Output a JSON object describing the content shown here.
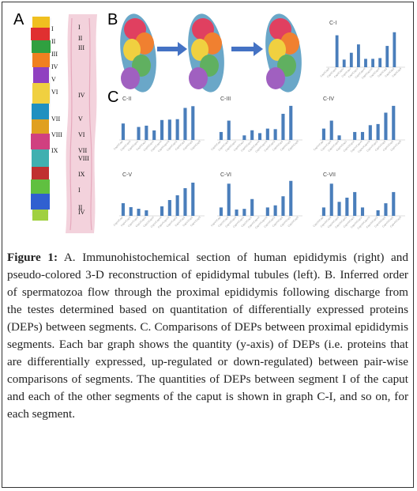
{
  "panels": {
    "a": "A",
    "b": "B",
    "c": "C"
  },
  "tissue_labels": {
    "left": [
      "I",
      "II",
      "III",
      "IV",
      "V",
      "VI",
      "VII",
      "VIII",
      "IX"
    ],
    "right": [
      "I",
      "II",
      "III",
      "IV",
      "V",
      "VI",
      "VII",
      "VIII",
      "IX",
      "I",
      "II",
      "IV"
    ]
  },
  "caption": {
    "label": "Figure 1:",
    "text": " A. Immunohistochemical section of human epididymis (right) and pseudo-colored 3-D reconstruction of epididymal tubules (left). B. Inferred order of spermatozoa flow through the proximal epididymis following discharge from the testes determined based on quantitation of differentially expressed proteins (DEPs) between segments. C. Comparisons of DEPs between proximal epididymis segments. Each bar graph shows the quantity (y-axis) of DEPs (i.e. proteins that are differentially expressed, up-regulated or down-regulated) between pair-wise comparisons of segments. The quantities of DEPs between segment I of the caput and each of the other segments of the caput is shown in graph C-I, and so on, for each segment."
  },
  "colors": {
    "bar": "#4a7ebb",
    "arrow": "#4472c4"
  },
  "chart_data": [
    {
      "type": "bar",
      "title": "C-I",
      "categories": [
        "CapI/CapII",
        "CapI/CapIII",
        "CapI/CapIV",
        "CapI/CapV",
        "CapI/CapVI",
        "CapI/CapVII",
        "CapI/CapVIII",
        "CapI/CapIX",
        "CapI/Cap1",
        "CapI/Cap2",
        "CapI/Cap3"
      ],
      "values": [
        0,
        210,
        50,
        95,
        150,
        55,
        55,
        60,
        140,
        230,
        0
      ],
      "ylim": [
        0,
        260
      ]
    },
    {
      "type": "bar",
      "title": "C-II",
      "categories": [
        "CapII/CapI",
        "CapII/CapIII",
        "CapII/CapIV",
        "CapII/CapV",
        "CapII/CapVI",
        "CapII/CapVII",
        "CapII/CapVIII",
        "CapII/CapIX",
        "CapII/Cap1",
        "CapII/Cap2",
        "CapII/Cap3"
      ],
      "values": [
        190,
        0,
        150,
        165,
        110,
        230,
        235,
        240,
        370,
        390,
        0
      ],
      "ylim": [
        0,
        420
      ]
    },
    {
      "type": "bar",
      "title": "C-III",
      "categories": [
        "CapIII/CapI",
        "CapIII/CapII",
        "CapIII/CapIV",
        "CapIII/CapV",
        "CapIII/CapVI",
        "CapIII/CapVII",
        "CapIII/CapVIII",
        "CapIII/CapIX",
        "CapIII/Cap1",
        "CapIII/Cap2",
        "CapIII/Cap3"
      ],
      "values": [
        70,
        170,
        0,
        40,
        85,
        60,
        100,
        95,
        230,
        300,
        0
      ],
      "ylim": [
        0,
        320
      ]
    },
    {
      "type": "bar",
      "title": "C-IV",
      "categories": [
        "CapIV/CapI",
        "CapIV/CapII",
        "CapIV/CapIII",
        "CapIV/CapV",
        "CapIV/CapVI",
        "CapIV/CapVII",
        "CapIV/CapVIII",
        "CapIV/CapIX",
        "CapIV/Cap1",
        "CapIV/Cap2",
        "CapIV/Cap3"
      ],
      "values": [
        100,
        170,
        40,
        0,
        70,
        70,
        130,
        140,
        240,
        300,
        0
      ],
      "ylim": [
        0,
        320
      ]
    },
    {
      "type": "bar",
      "title": "C-V",
      "categories": [
        "CapV/CapI",
        "CapV/CapII",
        "CapV/CapIII",
        "CapV/CapIV",
        "CapV/CapVI",
        "CapV/CapVII",
        "CapV/CapVIII",
        "CapV/CapIX",
        "CapV/Cap1",
        "CapV/Cap2",
        "CapV/Cap3"
      ],
      "values": [
        160,
        110,
        90,
        70,
        0,
        120,
        200,
        260,
        350,
        420,
        0
      ],
      "ylim": [
        0,
        460
      ]
    },
    {
      "type": "bar",
      "title": "C-VI",
      "categories": [
        "CapVI/CapI",
        "CapVI/CapII",
        "CapVI/CapIII",
        "CapVI/CapIV",
        "CapVI/CapV",
        "CapVI/CapVII",
        "CapVI/CapVIII",
        "CapVI/CapIX",
        "CapVI/Cap1",
        "CapVI/Cap2",
        "CapVI/Cap3"
      ],
      "values": [
        60,
        230,
        45,
        50,
        120,
        0,
        60,
        75,
        140,
        250,
        0
      ],
      "ylim": [
        0,
        260
      ]
    },
    {
      "type": "bar",
      "title": "C-VII",
      "categories": [
        "CapVII/CapI",
        "CapVII/CapII",
        "CapVII/CapIII",
        "CapVII/CapIV",
        "CapVII/CapV",
        "CapVII/CapVI",
        "CapVII/CapVIII",
        "CapVII/CapIX",
        "CapVII/Cap1",
        "CapVII/Cap2",
        "CapVII/Cap3"
      ],
      "values": [
        60,
        230,
        100,
        130,
        170,
        60,
        0,
        40,
        90,
        170,
        0
      ],
      "ylim": [
        0,
        260
      ]
    }
  ]
}
